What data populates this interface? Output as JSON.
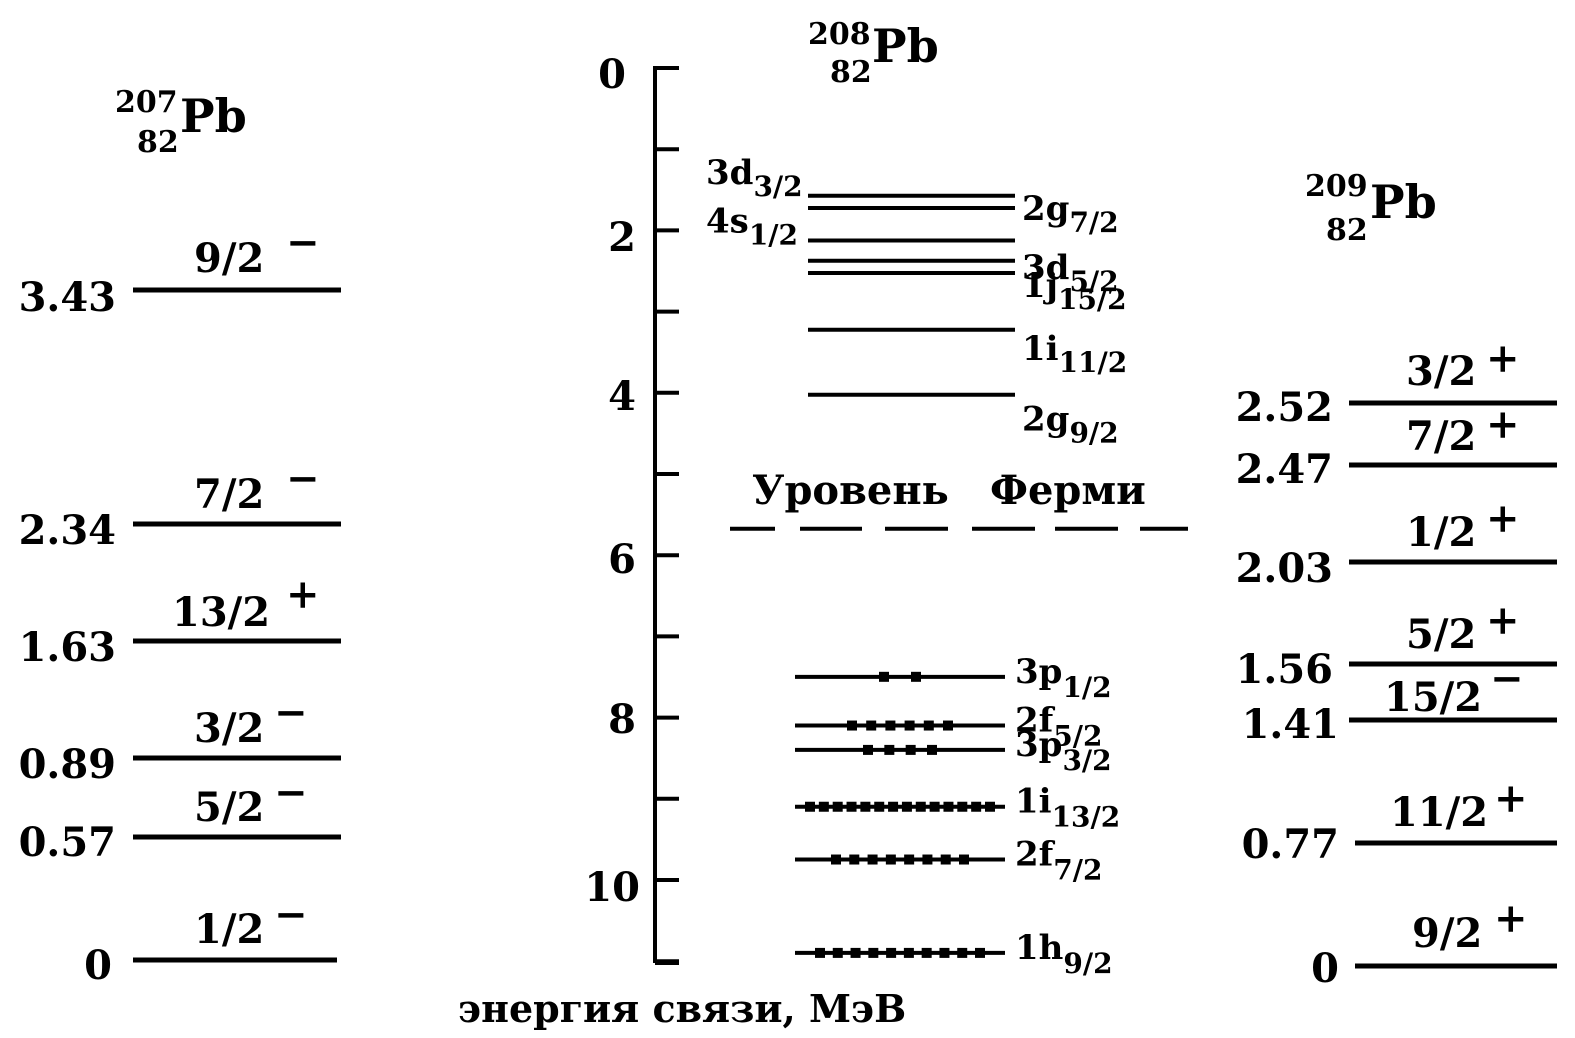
{
  "nucleus_207": {
    "mass": "207",
    "z": "82",
    "symbol": "Pb"
  },
  "nucleus_208": {
    "mass": "208",
    "z": "82",
    "symbol": "Pb"
  },
  "nucleus_209": {
    "mass": "209",
    "z": "82",
    "symbol": "Pb"
  },
  "axis": {
    "label": "энергия связи, МэВ",
    "ticks": [
      "0",
      "2",
      "4",
      "6",
      "8",
      "10"
    ]
  },
  "fermi_label": {
    "word1": "Уровень",
    "word2": "Ферми"
  },
  "levels_207": [
    {
      "energy": "3.43",
      "spin": "9/2",
      "parity": "−"
    },
    {
      "energy": "2.34",
      "spin": "7/2",
      "parity": "−"
    },
    {
      "energy": "1.63",
      "spin": "13/2",
      "parity": "+"
    },
    {
      "energy": "0.89",
      "spin": "3/2",
      "parity": "−"
    },
    {
      "energy": "0.57",
      "spin": "5/2",
      "parity": "−"
    },
    {
      "energy": "0",
      "spin": "1/2",
      "parity": "−"
    }
  ],
  "levels_209": [
    {
      "energy": "2.52",
      "spin": "3/2",
      "parity": "+"
    },
    {
      "energy": "2.47",
      "spin": "7/2",
      "parity": "+"
    },
    {
      "energy": "2.03",
      "spin": "1/2",
      "parity": "+"
    },
    {
      "energy": "1.56",
      "spin": "5/2",
      "parity": "+"
    },
    {
      "energy": "1.41",
      "spin": "15/2",
      "parity": "−"
    },
    {
      "energy": "0.77",
      "spin": "11/2",
      "parity": "+"
    },
    {
      "energy": "0",
      "spin": "9/2",
      "parity": "+"
    }
  ],
  "shells_empty": [
    {
      "label": "3d",
      "sub": "3/2",
      "binding_energy": 1.5
    },
    {
      "label": "2g",
      "sub": "7/2",
      "binding_energy": 1.65
    },
    {
      "label": "4s",
      "sub": "1/2",
      "binding_energy": 2.05
    },
    {
      "label": "3d",
      "sub": "5/2",
      "binding_energy": 2.3
    },
    {
      "label": "1j",
      "sub": "15/2",
      "binding_energy": 2.45
    },
    {
      "label": "1i",
      "sub": "11/2",
      "binding_energy": 3.15
    },
    {
      "label": "2g",
      "sub": "9/2",
      "binding_energy": 3.95
    }
  ],
  "shells_filled": [
    {
      "label": "3p",
      "sub": "1/2",
      "binding_energy": 7.35,
      "nucleons": 2
    },
    {
      "label": "2f",
      "sub": "5/2",
      "binding_energy": 7.95,
      "nucleons": 6
    },
    {
      "label": "3p",
      "sub": "3/2",
      "binding_energy": 8.25,
      "nucleons": 4
    },
    {
      "label": "1i",
      "sub": "13/2",
      "binding_energy": 8.95,
      "nucleons": 14
    },
    {
      "label": "2f",
      "sub": "7/2",
      "binding_energy": 9.6,
      "nucleons": 8
    },
    {
      "label": "1h",
      "sub": "9/2",
      "binding_energy": 10.75,
      "nucleons": 10
    }
  ],
  "fermi_energy": 5.6
}
